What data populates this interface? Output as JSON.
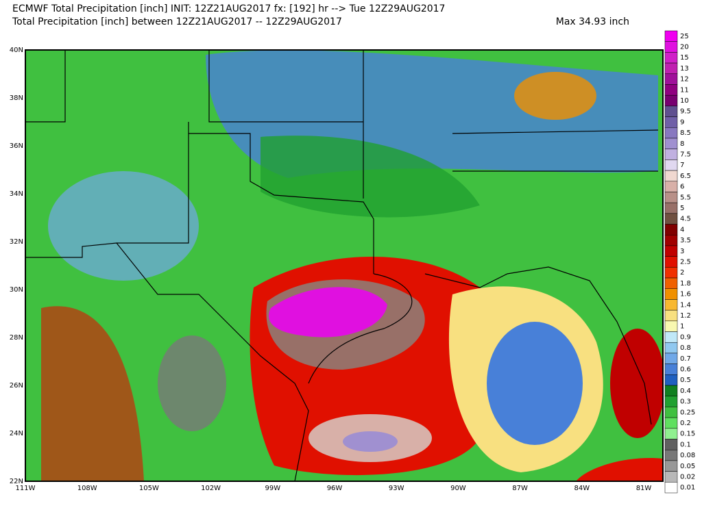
{
  "header": {
    "line1": "ECMWF Total Precipitation [inch] INIT: 12Z21AUG2017 fx: [192] hr --> Tue 12Z29AUG2017",
    "line2": "Total Precipitation [inch] between 12Z21AUG2017 -- 12Z29AUG2017",
    "max": "Max 34.93 inch"
  },
  "lat_labels": [
    "40N",
    "38N",
    "36N",
    "34N",
    "32N",
    "30N",
    "28N",
    "26N",
    "24N",
    "22N"
  ],
  "lon_labels": [
    "111W",
    "108W",
    "105W",
    "102W",
    "99W",
    "96W",
    "93W",
    "90W",
    "87W",
    "84W",
    "81W"
  ],
  "colorbar": {
    "labels": [
      "25",
      "20",
      "15",
      "13",
      "12",
      "11",
      "10",
      "9.5",
      "9",
      "8.5",
      "8",
      "7.5",
      "7",
      "6.5",
      "6",
      "5.5",
      "5",
      "4.5",
      "4",
      "3.5",
      "3",
      "2.5",
      "2",
      "1.8",
      "1.6",
      "1.4",
      "1.2",
      "1",
      "0.9",
      "0.8",
      "0.7",
      "0.6",
      "0.5",
      "0.4",
      "0.3",
      "0.25",
      "0.2",
      "0.15",
      "0.1",
      "0.08",
      "0.05",
      "0.02",
      "0.01"
    ],
    "colors": [
      "#f000f0",
      "#e010e0",
      "#d020c8",
      "#c020b0",
      "#a0109a",
      "#900080",
      "#780070",
      "#605090",
      "#7060a8",
      "#8878c0",
      "#a090d0",
      "#c0b0e0",
      "#e0d8f0",
      "#f0d8d0",
      "#d8b0a8",
      "#b89088",
      "#987068",
      "#705040",
      "#800000",
      "#a00000",
      "#c00000",
      "#e01000",
      "#f03000",
      "#f06000",
      "#f09000",
      "#f8b830",
      "#f8e080",
      "#f8f8b0",
      "#c0e8f8",
      "#90c8f0",
      "#70a8e8",
      "#4880d8",
      "#2060c0",
      "#108020",
      "#20a030",
      "#40c040",
      "#60e060",
      "#90f090",
      "#606060",
      "#787878",
      "#989898",
      "#b8b8b8",
      "#ffffff"
    ]
  }
}
